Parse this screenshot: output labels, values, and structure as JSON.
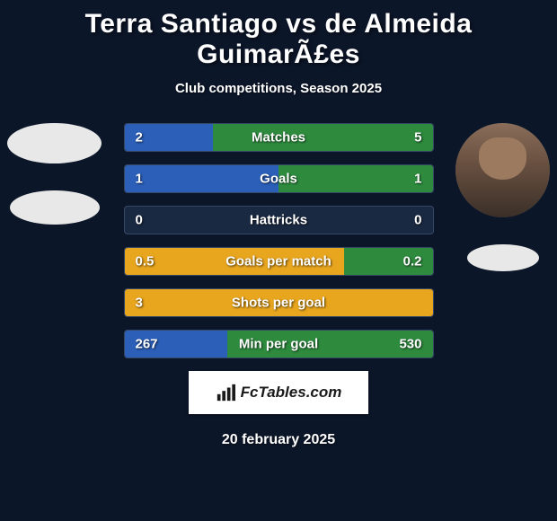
{
  "title": "Terra Santiago vs de Almeida GuimarÃ£es",
  "subtitle": "Club competitions, Season 2025",
  "date": "20 february 2025",
  "brand": {
    "text": "FcTables.com"
  },
  "colors": {
    "background": "#0c1629",
    "bar_blue": "#2b5fb8",
    "bar_green": "#2e8b3e",
    "bar_orange": "#e8a51e",
    "text": "#ffffff"
  },
  "player_left": {
    "has_photo": false
  },
  "player_right": {
    "has_photo": true
  },
  "stats": [
    {
      "label": "Matches",
      "left_value": "2",
      "right_value": "5",
      "left_width_pct": 28.6,
      "right_width_pct": 71.4,
      "left_color": "#2b5fb8",
      "right_color": "#2e8b3e"
    },
    {
      "label": "Goals",
      "left_value": "1",
      "right_value": "1",
      "left_width_pct": 50,
      "right_width_pct": 50,
      "left_color": "#2b5fb8",
      "right_color": "#2e8b3e"
    },
    {
      "label": "Hattricks",
      "left_value": "0",
      "right_value": "0",
      "left_width_pct": 0,
      "right_width_pct": 0,
      "left_color": "#2b5fb8",
      "right_color": "#2e8b3e"
    },
    {
      "label": "Goals per match",
      "left_value": "0.5",
      "right_value": "0.2",
      "left_width_pct": 71.4,
      "right_width_pct": 28.6,
      "left_color": "#e8a51e",
      "right_color": "#2e8b3e"
    },
    {
      "label": "Shots per goal",
      "left_value": "3",
      "right_value": "",
      "left_width_pct": 100,
      "right_width_pct": 0,
      "left_color": "#e8a51e",
      "right_color": "#2e8b3e"
    },
    {
      "label": "Min per goal",
      "left_value": "267",
      "right_value": "530",
      "left_width_pct": 33.5,
      "right_width_pct": 66.5,
      "left_color": "#2b5fb8",
      "right_color": "#2e8b3e"
    }
  ]
}
